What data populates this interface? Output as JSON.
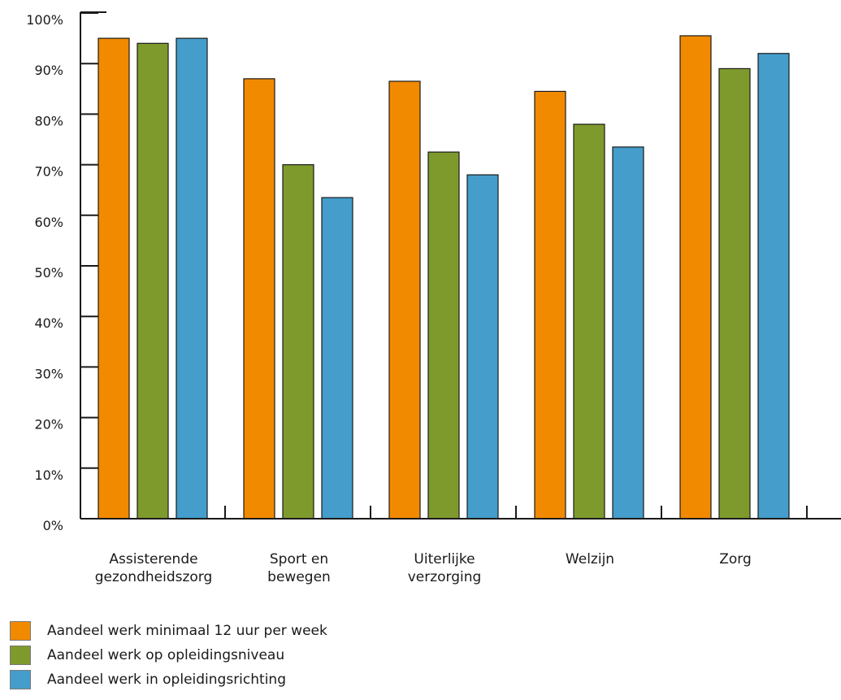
{
  "chart_data": {
    "type": "bar",
    "title": "",
    "xlabel": "",
    "ylabel": "",
    "ylim": [
      0,
      100
    ],
    "y_ticks": [
      0,
      10,
      20,
      30,
      40,
      50,
      60,
      70,
      80,
      90,
      100
    ],
    "y_tick_labels": [
      "0%",
      "10%",
      "20%",
      "30%",
      "40%",
      "50%",
      "60%",
      "70%",
      "80%",
      "90%",
      "100%"
    ],
    "categories": [
      [
        "Assisterende",
        "gezondheidszorg"
      ],
      [
        "Sport en",
        "bewegen"
      ],
      [
        "Uiterlijke",
        "verzorging"
      ],
      [
        "Welzijn"
      ],
      [
        "Zorg"
      ]
    ],
    "series": [
      {
        "name": "Aandeel werk minimaal 12 uur per week",
        "color": "#f28a00",
        "values": [
          95,
          87,
          86.5,
          84.5,
          95.5
        ]
      },
      {
        "name": "Aandeel werk op opleidingsniveau",
        "color": "#7f9a2c",
        "values": [
          94,
          70,
          72.5,
          78,
          89
        ]
      },
      {
        "name": "Aandeel werk in opleidingsrichting",
        "color": "#449dcb",
        "values": [
          95,
          63.5,
          68,
          73.5,
          92
        ]
      }
    ],
    "grid": false,
    "legend_position": "bottom-left"
  }
}
